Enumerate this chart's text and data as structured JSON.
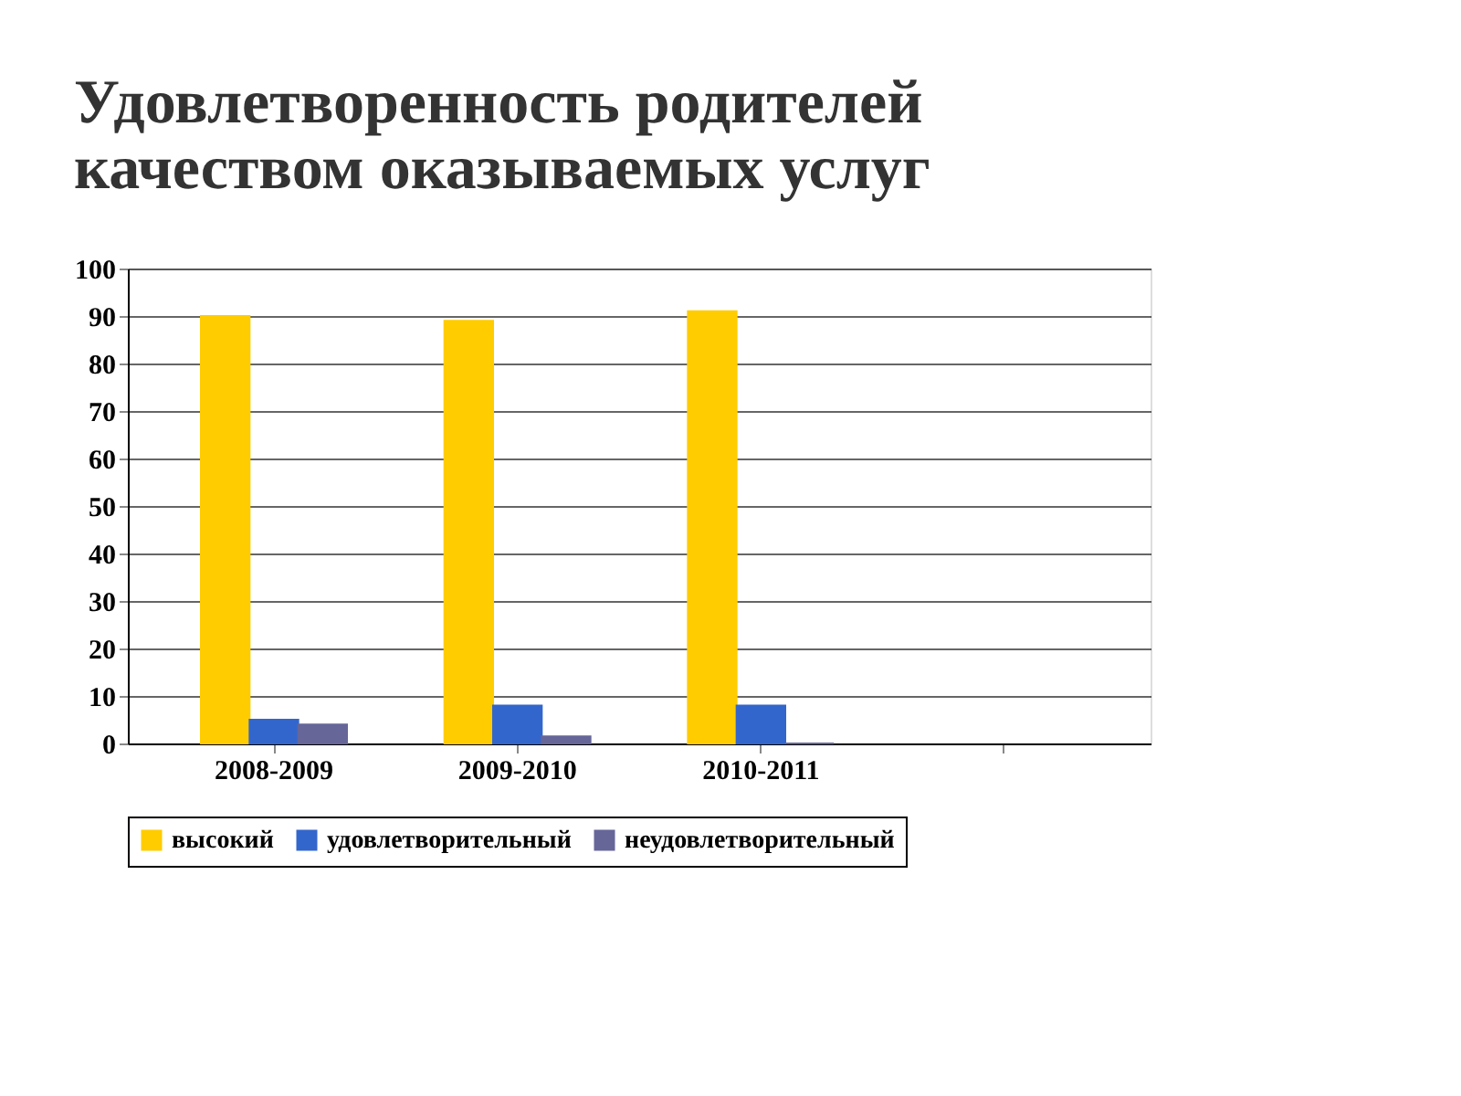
{
  "chart_data": {
    "type": "bar",
    "title": [
      "Удовлетворенность родителей",
      "качеством оказываемых услуг"
    ],
    "categories": [
      "2008-2009",
      "2009-2010",
      "2010-2011",
      null
    ],
    "series": [
      {
        "name": "высокий",
        "color": "#ffcc00",
        "values": [
          90,
          89,
          91,
          null
        ]
      },
      {
        "name": "удовлетворительный",
        "color": "#3366cc",
        "values": [
          5,
          8,
          8,
          null
        ]
      },
      {
        "name": "неудовлетворительный",
        "color": "#666699",
        "values": [
          4,
          1.5,
          0,
          null
        ]
      }
    ],
    "ylim": [
      0,
      100
    ],
    "yticks": [
      0,
      10,
      20,
      30,
      40,
      50,
      60,
      70,
      80,
      90,
      100
    ],
    "grid": "y",
    "legend": "bottom"
  }
}
